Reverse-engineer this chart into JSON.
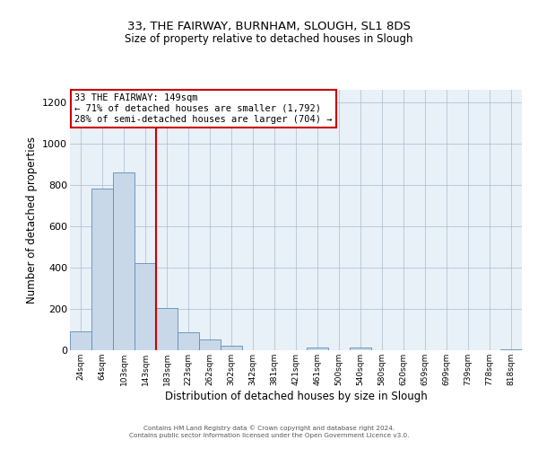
{
  "title": "33, THE FAIRWAY, BURNHAM, SLOUGH, SL1 8DS",
  "subtitle": "Size of property relative to detached houses in Slough",
  "xlabel": "Distribution of detached houses by size in Slough",
  "ylabel": "Number of detached properties",
  "bar_color": "#c8d8e8",
  "bar_edge_color": "#5b8db8",
  "bin_labels": [
    "24sqm",
    "64sqm",
    "103sqm",
    "143sqm",
    "183sqm",
    "223sqm",
    "262sqm",
    "302sqm",
    "342sqm",
    "381sqm",
    "421sqm",
    "461sqm",
    "500sqm",
    "540sqm",
    "580sqm",
    "620sqm",
    "659sqm",
    "699sqm",
    "739sqm",
    "778sqm",
    "818sqm"
  ],
  "bar_values": [
    90,
    780,
    860,
    420,
    205,
    85,
    52,
    22,
    0,
    0,
    0,
    15,
    0,
    15,
    0,
    0,
    0,
    0,
    0,
    0,
    5
  ],
  "ylim": [
    0,
    1260
  ],
  "yticks": [
    0,
    200,
    400,
    600,
    800,
    1000,
    1200
  ],
  "vline_index": 3,
  "vline_color": "#cc0000",
  "annotation_title": "33 THE FAIRWAY: 149sqm",
  "annotation_line1": "← 71% of detached houses are smaller (1,792)",
  "annotation_line2": "28% of semi-detached houses are larger (704) →",
  "annotation_box_color": "#ffffff",
  "annotation_box_edge": "#cc0000",
  "footer_line1": "Contains HM Land Registry data © Crown copyright and database right 2024.",
  "footer_line2": "Contains public sector information licensed under the Open Government Licence v3.0.",
  "bg_color": "#e8f0f8"
}
